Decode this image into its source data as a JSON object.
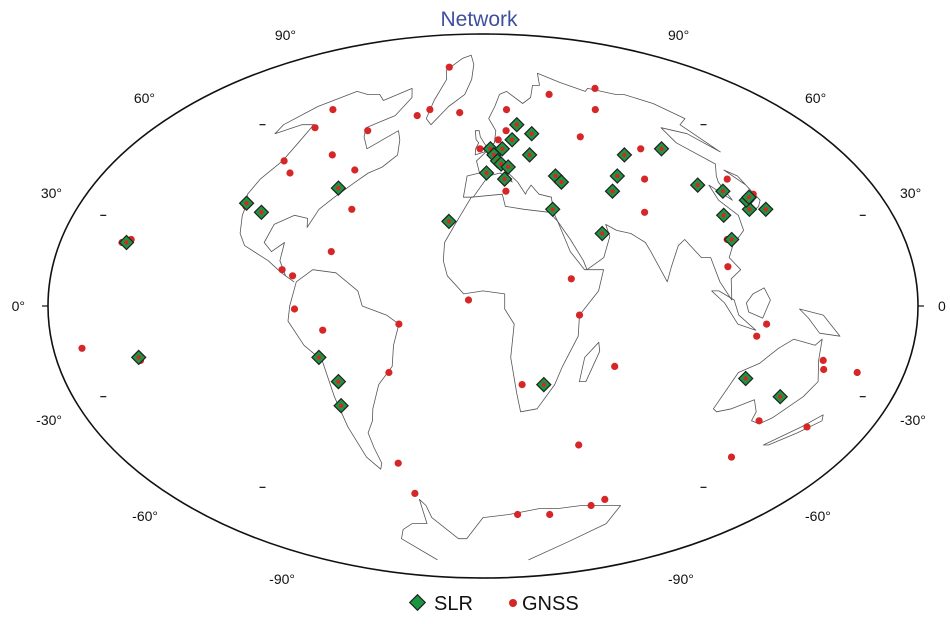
{
  "map": {
    "title": "Network",
    "title_color": "#3f4fa0",
    "ocean_color": "#ffffff",
    "coast_color": "#555555",
    "outline_color": "#111111",
    "latitude_labels": {
      "left": [
        "90°",
        "60°",
        "30°",
        "0°",
        "-30°",
        "-60°",
        "-90°"
      ],
      "right": [
        "90°",
        "60°",
        "30°",
        "0",
        "-30°",
        "-60°",
        "-90°"
      ]
    }
  },
  "legend": {
    "slr": {
      "label": "SLR",
      "fill": "#1a9641",
      "stroke": "#222222"
    },
    "gnss": {
      "label": "GNSS",
      "fill": "#d62728"
    }
  },
  "stations": {
    "slr": [
      [
        -158,
        21
      ],
      [
        -149,
        -17
      ],
      [
        -118,
        34
      ],
      [
        -107,
        31
      ],
      [
        -77,
        39
      ],
      [
        -71,
        -17
      ],
      [
        -70,
        -33
      ],
      [
        -66,
        -25
      ],
      [
        -16,
        28
      ],
      [
        2,
        44
      ],
      [
        5,
        52
      ],
      [
        7,
        50
      ],
      [
        9,
        48
      ],
      [
        11,
        47
      ],
      [
        12,
        42
      ],
      [
        13,
        52
      ],
      [
        15,
        46
      ],
      [
        21,
        55
      ],
      [
        28,
        60
      ],
      [
        30,
        50
      ],
      [
        34,
        32
      ],
      [
        37,
        57
      ],
      [
        41,
        43
      ],
      [
        43,
        41
      ],
      [
        28,
        -26
      ],
      [
        54,
        24
      ],
      [
        68,
        38
      ],
      [
        76,
        43
      ],
      [
        91,
        50
      ],
      [
        111,
        22
      ],
      [
        115,
        30
      ],
      [
        116,
        40
      ],
      [
        119,
        -24
      ],
      [
        120,
        52
      ],
      [
        126,
        38
      ],
      [
        130,
        32
      ],
      [
        133,
        35
      ],
      [
        136,
        36
      ],
      [
        138,
        32
      ],
      [
        142,
        -30
      ]
    ],
    "gnss": [
      [
        -160,
        21
      ],
      [
        -157,
        22
      ],
      [
        -171,
        -14
      ],
      [
        -149,
        -18
      ],
      [
        -147,
        65
      ],
      [
        -135,
        59
      ],
      [
        -123,
        48
      ],
      [
        -117,
        33
      ],
      [
        -111,
        44
      ],
      [
        -97,
        50
      ],
      [
        -75,
        45
      ],
      [
        -66,
        18
      ],
      [
        -64,
        32
      ],
      [
        -85,
        12
      ],
      [
        -80,
        10
      ],
      [
        -78,
        -1
      ],
      [
        -67,
        -8
      ],
      [
        -35,
        -6
      ],
      [
        -42,
        -22
      ],
      [
        -73,
        79
      ],
      [
        -52,
        65
      ],
      [
        -60,
        63
      ],
      [
        -22,
        64
      ],
      [
        -15,
        28
      ],
      [
        -6,
        2
      ],
      [
        -2,
        52
      ],
      [
        11,
        55
      ],
      [
        14,
        52
      ],
      [
        18,
        58
      ],
      [
        23,
        65
      ],
      [
        12,
        38
      ],
      [
        18,
        -26
      ],
      [
        37,
        9
      ],
      [
        40,
        -3
      ],
      [
        58,
        -20
      ],
      [
        57,
        -46
      ],
      [
        72,
        56
      ],
      [
        78,
        31
      ],
      [
        90,
        42
      ],
      [
        106,
        52
      ],
      [
        115,
        -10
      ],
      [
        109,
        22
      ],
      [
        118,
        -6
      ],
      [
        104,
        13
      ],
      [
        136,
        42
      ],
      [
        140,
        37
      ],
      [
        148,
        -18
      ],
      [
        151,
        -21
      ],
      [
        145,
        -38
      ],
      [
        175,
        -40
      ],
      [
        160,
        -50
      ],
      [
        115,
        -64
      ],
      [
        40,
        -69
      ],
      [
        77,
        -69
      ],
      [
        110,
        -66
      ],
      [
        -57,
        -52
      ],
      [
        -60,
        -62
      ],
      [
        -90,
        58
      ],
      [
        80,
        70
      ],
      [
        150,
        72
      ],
      [
        167,
        -22
      ],
      [
        110,
        65
      ]
    ]
  }
}
